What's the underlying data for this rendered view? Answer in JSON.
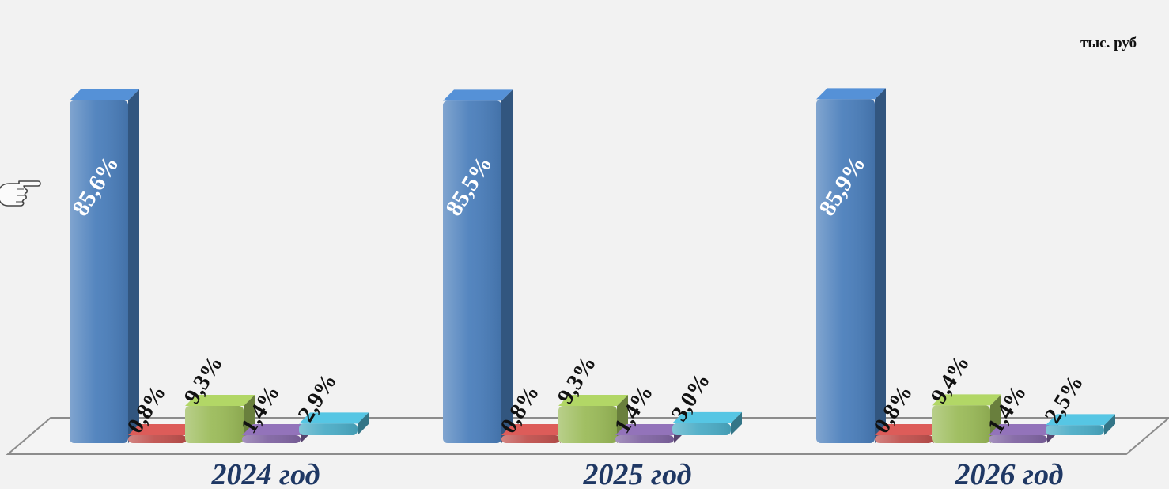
{
  "unit_label": "тыс. руб",
  "chart_data": {
    "type": "bar",
    "categories": [
      "2024 год",
      "2025 год",
      "2026 год"
    ],
    "series": [
      {
        "color": "#4a7ebb",
        "values": [
          85.6,
          85.5,
          85.9
        ],
        "labels": [
          "85,6%",
          "85,5%",
          "85,9%"
        ]
      },
      {
        "color": "#c0504d",
        "values": [
          0.8,
          0.8,
          0.8
        ],
        "labels": [
          "0,8%",
          "0,8%",
          "0,8%"
        ]
      },
      {
        "color": "#9bbb59",
        "values": [
          9.3,
          9.3,
          9.4
        ],
        "labels": [
          "9,3%",
          "9,3%",
          "9,4%"
        ]
      },
      {
        "color": "#8064a2",
        "values": [
          1.4,
          1.4,
          1.4
        ],
        "labels": [
          "1,4%",
          "1,4%",
          "1,4%"
        ]
      },
      {
        "color": "#4bacc6",
        "values": [
          2.9,
          3.0,
          2.5
        ],
        "labels": [
          "2,9%",
          "3,0%",
          "2,5%"
        ]
      }
    ],
    "ylim": [
      0,
      100
    ],
    "grid": false,
    "legend": "none",
    "icons": [
      "pointing-hand-icon"
    ]
  }
}
